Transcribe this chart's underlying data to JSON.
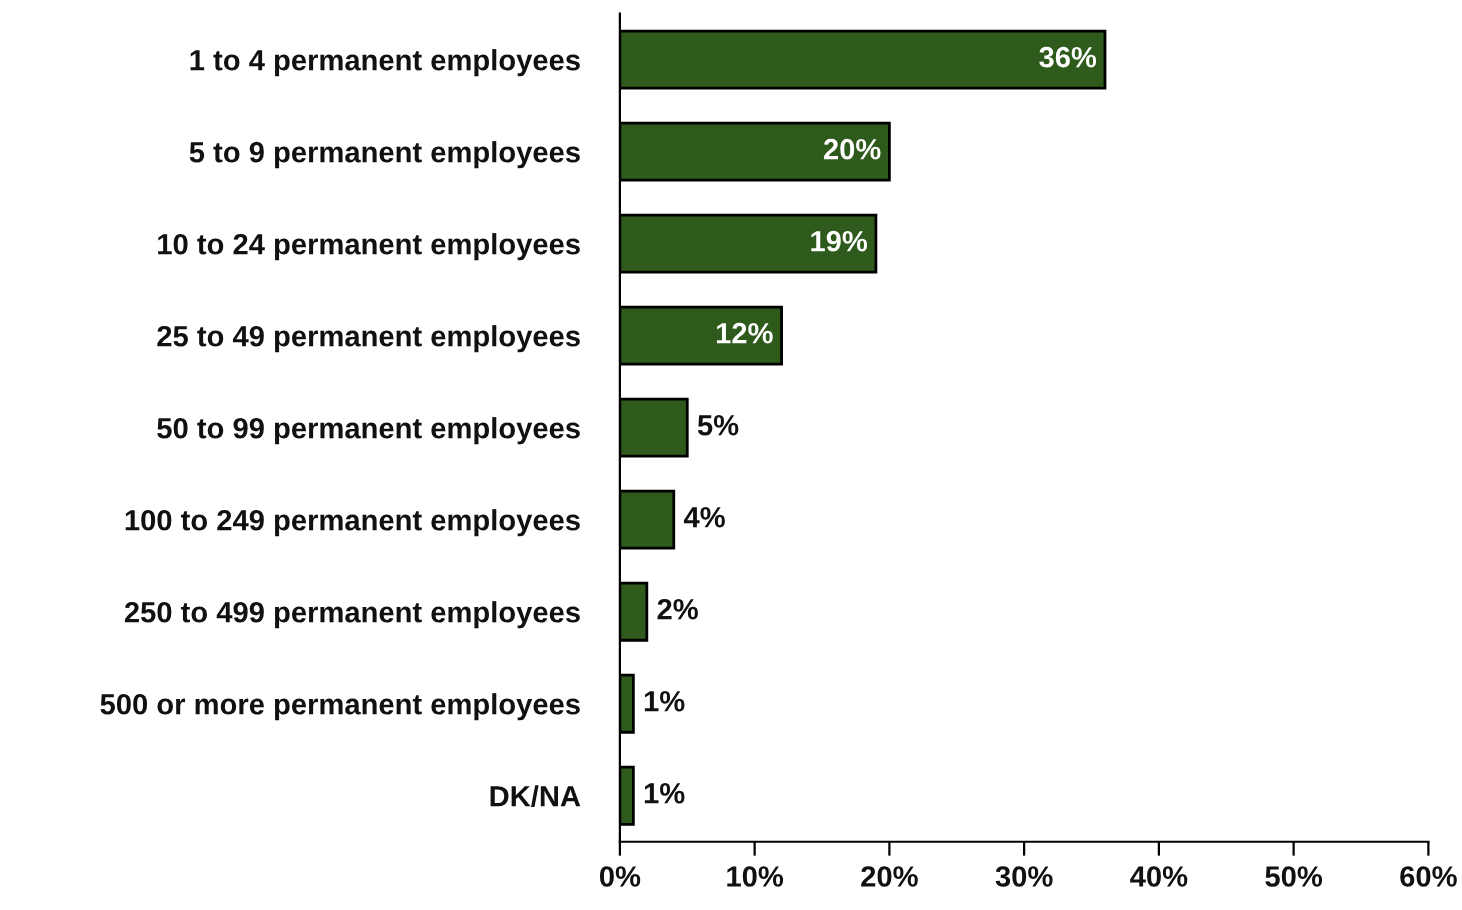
{
  "chart_data": {
    "type": "bar",
    "orientation": "horizontal",
    "categories": [
      "1 to 4 permanent employees",
      "5 to 9 permanent employees",
      "10 to 24 permanent employees",
      "25 to 49 permanent employees",
      "50 to 99 permanent employees",
      "100 to 249 permanent employees",
      "250 to 499 permanent employees",
      "500 or more permanent employees",
      "DK/NA"
    ],
    "values": [
      36,
      20,
      19,
      12,
      5,
      4,
      2,
      1,
      1
    ],
    "value_labels": [
      "36%",
      "20%",
      "19%",
      "12%",
      "5%",
      "4%",
      "2%",
      "1%",
      "1%"
    ],
    "color": "#2e5a1c",
    "xlim": [
      0,
      60
    ],
    "xticks": [
      {
        "value": 0,
        "label": "0%"
      },
      {
        "value": 10,
        "label": "10%"
      },
      {
        "value": 20,
        "label": "20%"
      },
      {
        "value": 30,
        "label": "30%"
      },
      {
        "value": 40,
        "label": "40%"
      },
      {
        "value": 50,
        "label": "50%"
      },
      {
        "value": 60,
        "label": "60%"
      }
    ],
    "grid": false,
    "legend": false
  }
}
